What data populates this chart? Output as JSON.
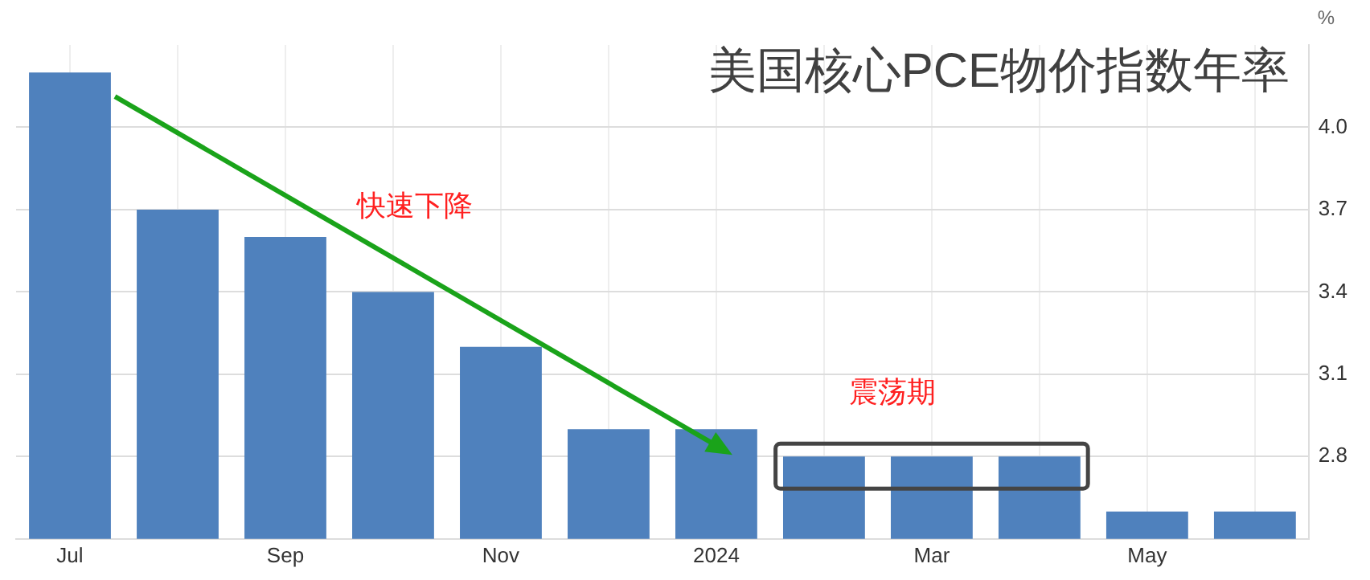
{
  "chart_data": {
    "type": "bar",
    "title": "美国核心PCE物价指数年率",
    "ylabel": "%",
    "categories": [
      "Jul",
      null,
      "Sep",
      null,
      "Nov",
      null,
      "2024",
      null,
      "Mar",
      null,
      "May",
      null
    ],
    "values": [
      4.2,
      3.7,
      3.6,
      3.4,
      3.2,
      2.9,
      2.9,
      2.8,
      2.8,
      2.8,
      2.6,
      2.6
    ],
    "color": "#4f81bd",
    "ylim": [
      2.5,
      4.3
    ],
    "yticks": [
      2.8,
      3.1,
      3.4,
      3.7,
      {
        "value": 4,
        "label": "4.0"
      }
    ],
    "grid": true,
    "annotations": [
      "快速下降",
      "震荡期"
    ]
  }
}
